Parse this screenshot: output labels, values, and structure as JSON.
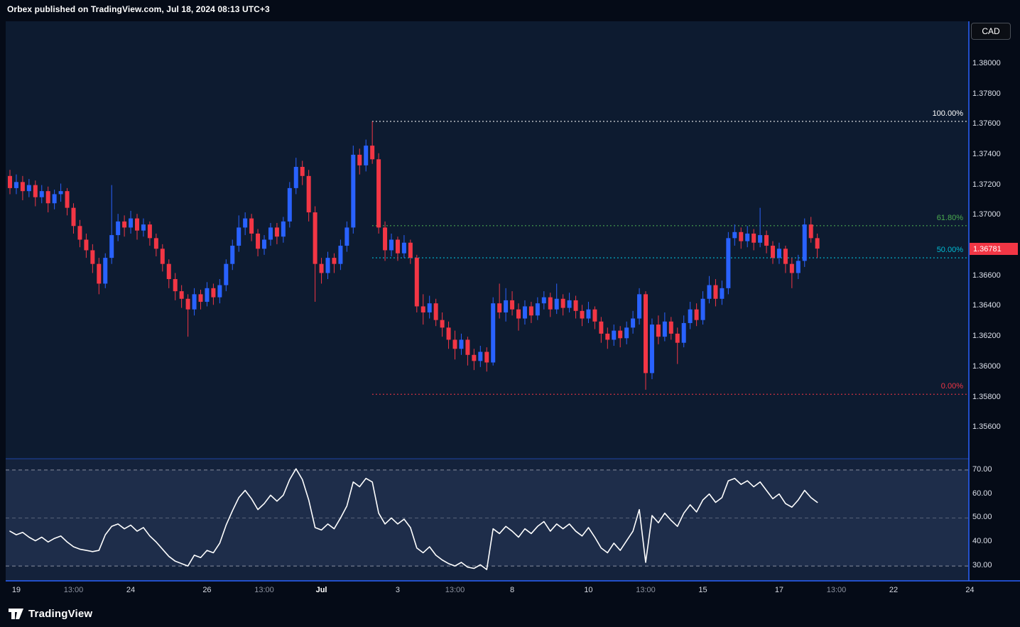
{
  "header": {
    "publish_note": "Orbex published on TradingView.com, Jul 18, 2024 08:13 UTC+3"
  },
  "symbol_badge": {
    "label": "CAD"
  },
  "footer": {
    "brand": "TradingView"
  },
  "colors": {
    "bg_outer": "#050b17",
    "bg_main": "#0d1b30",
    "bg_osc": "#14223b",
    "osc_band": "rgba(130,152,210,0.10)",
    "axis_border": "#2962ff",
    "pane_separator": "rgba(41,98,255,0.55)",
    "axis_text": "#dce0ea",
    "price_badge_bg": "#f23645",
    "up": "#2962ff",
    "down": "#f23645",
    "oscillator_line": "#ffffff",
    "hline_dash": "#9aa0b0"
  },
  "price_axis": {
    "labels": [
      "1.38000",
      "1.37800",
      "1.37600",
      "1.37400",
      "1.37200",
      "1.37000",
      "1.36600",
      "1.36400",
      "1.36200",
      "1.36000",
      "1.35800",
      "1.35600"
    ],
    "current_price": "1.36781"
  },
  "oscillator_axis": {
    "labels": [
      "70.00",
      "60.00",
      "50.00",
      "40.00",
      "30.00"
    ]
  },
  "time_axis": {
    "ticks": [
      {
        "label": "19",
        "index": 1,
        "minor": false,
        "bold": false
      },
      {
        "label": "13:00",
        "index": 10,
        "minor": true,
        "bold": false
      },
      {
        "label": "24",
        "index": 19,
        "minor": false,
        "bold": false
      },
      {
        "label": "26",
        "index": 31,
        "minor": false,
        "bold": false
      },
      {
        "label": "13:00",
        "index": 40,
        "minor": true,
        "bold": false
      },
      {
        "label": "Jul",
        "index": 49,
        "minor": false,
        "bold": true
      },
      {
        "label": "3",
        "index": 61,
        "minor": false,
        "bold": false
      },
      {
        "label": "13:00",
        "index": 70,
        "minor": true,
        "bold": false
      },
      {
        "label": "8",
        "index": 79,
        "minor": false,
        "bold": false
      },
      {
        "label": "10",
        "index": 91,
        "minor": false,
        "bold": false
      },
      {
        "label": "13:00",
        "index": 100,
        "minor": true,
        "bold": false
      },
      {
        "label": "15",
        "index": 109,
        "minor": false,
        "bold": false
      },
      {
        "label": "17",
        "index": 121,
        "minor": false,
        "bold": false
      },
      {
        "label": "13:00",
        "index": 130,
        "minor": true,
        "bold": false
      },
      {
        "label": "22",
        "index": 139,
        "minor": false,
        "bold": false
      },
      {
        "label": "24",
        "index": 151,
        "minor": false,
        "bold": false
      }
    ]
  },
  "chart_data": [
    {
      "type": "candlestick",
      "ylim": [
        1.354,
        1.3828
      ],
      "up_color": "#2962ff",
      "down_color": "#f23645",
      "fib_retracement": {
        "start_index": 57,
        "levels": [
          {
            "label": "100.00%",
            "value": 1.3762,
            "color": "#ffffff"
          },
          {
            "label": "61.80%",
            "value": 1.36932,
            "color": "#4caf50"
          },
          {
            "label": "50.00%",
            "value": 1.3672,
            "color": "#00bcd4"
          },
          {
            "label": "0.00%",
            "value": 1.3582,
            "color": "#f23645"
          }
        ]
      },
      "candles": [
        [
          1.3726,
          1.373,
          1.3714,
          1.3718
        ],
        [
          1.3718,
          1.3727,
          1.3714,
          1.3722
        ],
        [
          1.3722,
          1.3726,
          1.371,
          1.3716
        ],
        [
          1.3716,
          1.3724,
          1.3712,
          1.372
        ],
        [
          1.372,
          1.3723,
          1.3706,
          1.3712
        ],
        [
          1.3712,
          1.372,
          1.3708,
          1.3716
        ],
        [
          1.3716,
          1.3719,
          1.3702,
          1.3708
        ],
        [
          1.3708,
          1.3717,
          1.3704,
          1.3714
        ],
        [
          1.3714,
          1.3721,
          1.3709,
          1.3716
        ],
        [
          1.3716,
          1.3718,
          1.37,
          1.3705
        ],
        [
          1.3705,
          1.3708,
          1.3688,
          1.3693
        ],
        [
          1.3693,
          1.3697,
          1.3679,
          1.3684
        ],
        [
          1.3684,
          1.3688,
          1.3672,
          1.3677
        ],
        [
          1.3677,
          1.3681,
          1.3662,
          1.3668
        ],
        [
          1.3668,
          1.3672,
          1.3648,
          1.3655
        ],
        [
          1.3655,
          1.3675,
          1.3652,
          1.3672
        ],
        [
          1.3672,
          1.372,
          1.3668,
          1.3687
        ],
        [
          1.3687,
          1.3701,
          1.3683,
          1.3696
        ],
        [
          1.3696,
          1.37,
          1.3686,
          1.3692
        ],
        [
          1.3692,
          1.3703,
          1.3688,
          1.3698
        ],
        [
          1.3698,
          1.3701,
          1.3684,
          1.369
        ],
        [
          1.369,
          1.3698,
          1.3686,
          1.3694
        ],
        [
          1.3694,
          1.3696,
          1.368,
          1.3685
        ],
        [
          1.3685,
          1.3688,
          1.3673,
          1.3678
        ],
        [
          1.3678,
          1.3681,
          1.3663,
          1.3668
        ],
        [
          1.3668,
          1.3671,
          1.3652,
          1.3658
        ],
        [
          1.3658,
          1.3662,
          1.3644,
          1.365
        ],
        [
          1.365,
          1.3654,
          1.3639,
          1.3645
        ],
        [
          1.3645,
          1.3648,
          1.362,
          1.3638
        ],
        [
          1.3638,
          1.3652,
          1.3634,
          1.3648
        ],
        [
          1.3648,
          1.3651,
          1.3638,
          1.3643
        ],
        [
          1.3643,
          1.3656,
          1.364,
          1.3652
        ],
        [
          1.3652,
          1.3655,
          1.3641,
          1.3646
        ],
        [
          1.3646,
          1.3658,
          1.3642,
          1.3654
        ],
        [
          1.3654,
          1.3671,
          1.365,
          1.3668
        ],
        [
          1.3668,
          1.3684,
          1.3664,
          1.368
        ],
        [
          1.368,
          1.37,
          1.3676,
          1.3692
        ],
        [
          1.3692,
          1.3702,
          1.3687,
          1.3698
        ],
        [
          1.3698,
          1.3701,
          1.3683,
          1.3688
        ],
        [
          1.3688,
          1.3691,
          1.3673,
          1.3678
        ],
        [
          1.3678,
          1.3687,
          1.3674,
          1.3684
        ],
        [
          1.3684,
          1.3695,
          1.368,
          1.3692
        ],
        [
          1.3692,
          1.3695,
          1.3681,
          1.3686
        ],
        [
          1.3686,
          1.3699,
          1.3682,
          1.3696
        ],
        [
          1.3696,
          1.3722,
          1.3692,
          1.3718
        ],
        [
          1.3718,
          1.3738,
          1.3714,
          1.3732
        ],
        [
          1.3732,
          1.3736,
          1.372,
          1.3726
        ],
        [
          1.3726,
          1.373,
          1.3696,
          1.3702
        ],
        [
          1.3702,
          1.3706,
          1.3643,
          1.3668
        ],
        [
          1.3668,
          1.3672,
          1.3655,
          1.3662
        ],
        [
          1.3662,
          1.3676,
          1.3658,
          1.3672
        ],
        [
          1.3672,
          1.3675,
          1.3662,
          1.3668
        ],
        [
          1.3668,
          1.3684,
          1.3664,
          1.368
        ],
        [
          1.368,
          1.3696,
          1.3676,
          1.3692
        ],
        [
          1.3692,
          1.3746,
          1.3688,
          1.374
        ],
        [
          1.374,
          1.3744,
          1.3727,
          1.3733
        ],
        [
          1.3733,
          1.375,
          1.3729,
          1.3746
        ],
        [
          1.3746,
          1.3762,
          1.3734,
          1.3737
        ],
        [
          1.3737,
          1.3741,
          1.3688,
          1.3692
        ],
        [
          1.3692,
          1.3696,
          1.367,
          1.3677
        ],
        [
          1.3677,
          1.3688,
          1.3673,
          1.3684
        ],
        [
          1.3684,
          1.3686,
          1.367,
          1.3675
        ],
        [
          1.3675,
          1.3687,
          1.3672,
          1.3682
        ],
        [
          1.3682,
          1.3684,
          1.3668,
          1.3672
        ],
        [
          1.3672,
          1.3674,
          1.3636,
          1.364
        ],
        [
          1.364,
          1.3648,
          1.3628,
          1.3636
        ],
        [
          1.3636,
          1.3647,
          1.3632,
          1.3642
        ],
        [
          1.3642,
          1.3645,
          1.3627,
          1.3631
        ],
        [
          1.3631,
          1.3636,
          1.362,
          1.3626
        ],
        [
          1.3626,
          1.363,
          1.3612,
          1.3618
        ],
        [
          1.3618,
          1.3624,
          1.3605,
          1.3612
        ],
        [
          1.3612,
          1.3622,
          1.3608,
          1.3618
        ],
        [
          1.3618,
          1.362,
          1.3601,
          1.3608
        ],
        [
          1.3608,
          1.3612,
          1.3598,
          1.3604
        ],
        [
          1.3604,
          1.3614,
          1.36,
          1.361
        ],
        [
          1.361,
          1.3613,
          1.3597,
          1.3603
        ],
        [
          1.3603,
          1.3646,
          1.3601,
          1.3642
        ],
        [
          1.3642,
          1.3655,
          1.3632,
          1.3636
        ],
        [
          1.3636,
          1.3652,
          1.363,
          1.3644
        ],
        [
          1.3644,
          1.365,
          1.3634,
          1.3638
        ],
        [
          1.3638,
          1.3642,
          1.3624,
          1.3632
        ],
        [
          1.3632,
          1.3644,
          1.3628,
          1.364
        ],
        [
          1.364,
          1.3643,
          1.3629,
          1.3634
        ],
        [
          1.3634,
          1.3646,
          1.3631,
          1.3642
        ],
        [
          1.3642,
          1.365,
          1.3638,
          1.3646
        ],
        [
          1.3646,
          1.3649,
          1.3633,
          1.3638
        ],
        [
          1.3638,
          1.3655,
          1.3635,
          1.3645
        ],
        [
          1.3645,
          1.3648,
          1.3634,
          1.3639
        ],
        [
          1.3639,
          1.3649,
          1.3636,
          1.3644
        ],
        [
          1.3644,
          1.3647,
          1.3632,
          1.3637
        ],
        [
          1.3637,
          1.3641,
          1.3627,
          1.3632
        ],
        [
          1.3632,
          1.3643,
          1.3629,
          1.3638
        ],
        [
          1.3638,
          1.364,
          1.3625,
          1.363
        ],
        [
          1.363,
          1.3633,
          1.3616,
          1.3622
        ],
        [
          1.3622,
          1.3626,
          1.3612,
          1.3618
        ],
        [
          1.3618,
          1.3628,
          1.3614,
          1.3624
        ],
        [
          1.3624,
          1.3627,
          1.3613,
          1.3619
        ],
        [
          1.3619,
          1.363,
          1.3615,
          1.3626
        ],
        [
          1.3626,
          1.3637,
          1.3622,
          1.3632
        ],
        [
          1.3632,
          1.3652,
          1.3628,
          1.3648
        ],
        [
          1.3648,
          1.365,
          1.3585,
          1.3596
        ],
        [
          1.3596,
          1.3632,
          1.3592,
          1.3628
        ],
        [
          1.3628,
          1.3634,
          1.3615,
          1.362
        ],
        [
          1.362,
          1.3636,
          1.3617,
          1.363
        ],
        [
          1.363,
          1.3633,
          1.3618,
          1.3622
        ],
        [
          1.3622,
          1.3626,
          1.3602,
          1.3616
        ],
        [
          1.3616,
          1.3634,
          1.3613,
          1.3629
        ],
        [
          1.3629,
          1.3643,
          1.3625,
          1.3638
        ],
        [
          1.3638,
          1.3642,
          1.3627,
          1.3631
        ],
        [
          1.3631,
          1.365,
          1.3628,
          1.3645
        ],
        [
          1.3645,
          1.366,
          1.3642,
          1.3654
        ],
        [
          1.3654,
          1.3658,
          1.364,
          1.3645
        ],
        [
          1.3645,
          1.3657,
          1.3641,
          1.3652
        ],
        [
          1.3652,
          1.3689,
          1.3648,
          1.3685
        ],
        [
          1.3685,
          1.3694,
          1.368,
          1.3689
        ],
        [
          1.3689,
          1.3692,
          1.3678,
          1.3683
        ],
        [
          1.3683,
          1.3693,
          1.3679,
          1.3688
        ],
        [
          1.3688,
          1.3691,
          1.3677,
          1.3682
        ],
        [
          1.3682,
          1.3705,
          1.3679,
          1.3687
        ],
        [
          1.3687,
          1.369,
          1.3675,
          1.368
        ],
        [
          1.368,
          1.3683,
          1.3668,
          1.3672
        ],
        [
          1.3672,
          1.3682,
          1.3668,
          1.3678
        ],
        [
          1.3678,
          1.368,
          1.3662,
          1.3668
        ],
        [
          1.3668,
          1.3672,
          1.3652,
          1.3662
        ],
        [
          1.3662,
          1.3674,
          1.3658,
          1.367
        ],
        [
          1.367,
          1.3698,
          1.3666,
          1.3694
        ],
        [
          1.3694,
          1.3699,
          1.3682,
          1.3685
        ],
        [
          1.3685,
          1.3688,
          1.3672,
          1.36781
        ]
      ]
    },
    {
      "type": "line",
      "name": "oscillator",
      "ylim": [
        24.4,
        74.1
      ],
      "line_color": "#ffffff",
      "hlines": [
        {
          "value": 70,
          "strong": true
        },
        {
          "value": 50,
          "strong": false
        },
        {
          "value": 30,
          "strong": true
        }
      ],
      "values": [
        44.5,
        43,
        44,
        42,
        40.5,
        42,
        40,
        41.5,
        42.5,
        40,
        38,
        37,
        36.5,
        36,
        36.5,
        43,
        46.5,
        47.5,
        45.5,
        47,
        44.5,
        46,
        42.5,
        40,
        37,
        34,
        32,
        31,
        30,
        34.5,
        33.5,
        36.5,
        35.5,
        39.5,
        47,
        53,
        58.5,
        61.5,
        58,
        53.5,
        56,
        59.5,
        57,
        59.5,
        66,
        70.5,
        66,
        57.5,
        46,
        45,
        47.5,
        45.5,
        50,
        55,
        65,
        63,
        66.5,
        65,
        52,
        47.5,
        50,
        47.5,
        49.5,
        46,
        37.5,
        35.5,
        38,
        34.5,
        32.5,
        31,
        30,
        31.5,
        29.5,
        29,
        30.5,
        28.5,
        45.5,
        43.5,
        46.5,
        44.5,
        42,
        45.5,
        43.5,
        46.5,
        48.5,
        44.5,
        47.5,
        45.5,
        47.5,
        44.5,
        42.5,
        46,
        42,
        37.5,
        35.5,
        39.5,
        36.5,
        40.5,
        44.5,
        53.5,
        31.5,
        51,
        48,
        52,
        49,
        46.5,
        52,
        55.5,
        52.5,
        57.5,
        60,
        56.5,
        58.5,
        65.5,
        66.5,
        64,
        65.5,
        63,
        65,
        61.5,
        58,
        60,
        56,
        54.5,
        57.5,
        61.5,
        58.5,
        56.5
      ]
    }
  ]
}
